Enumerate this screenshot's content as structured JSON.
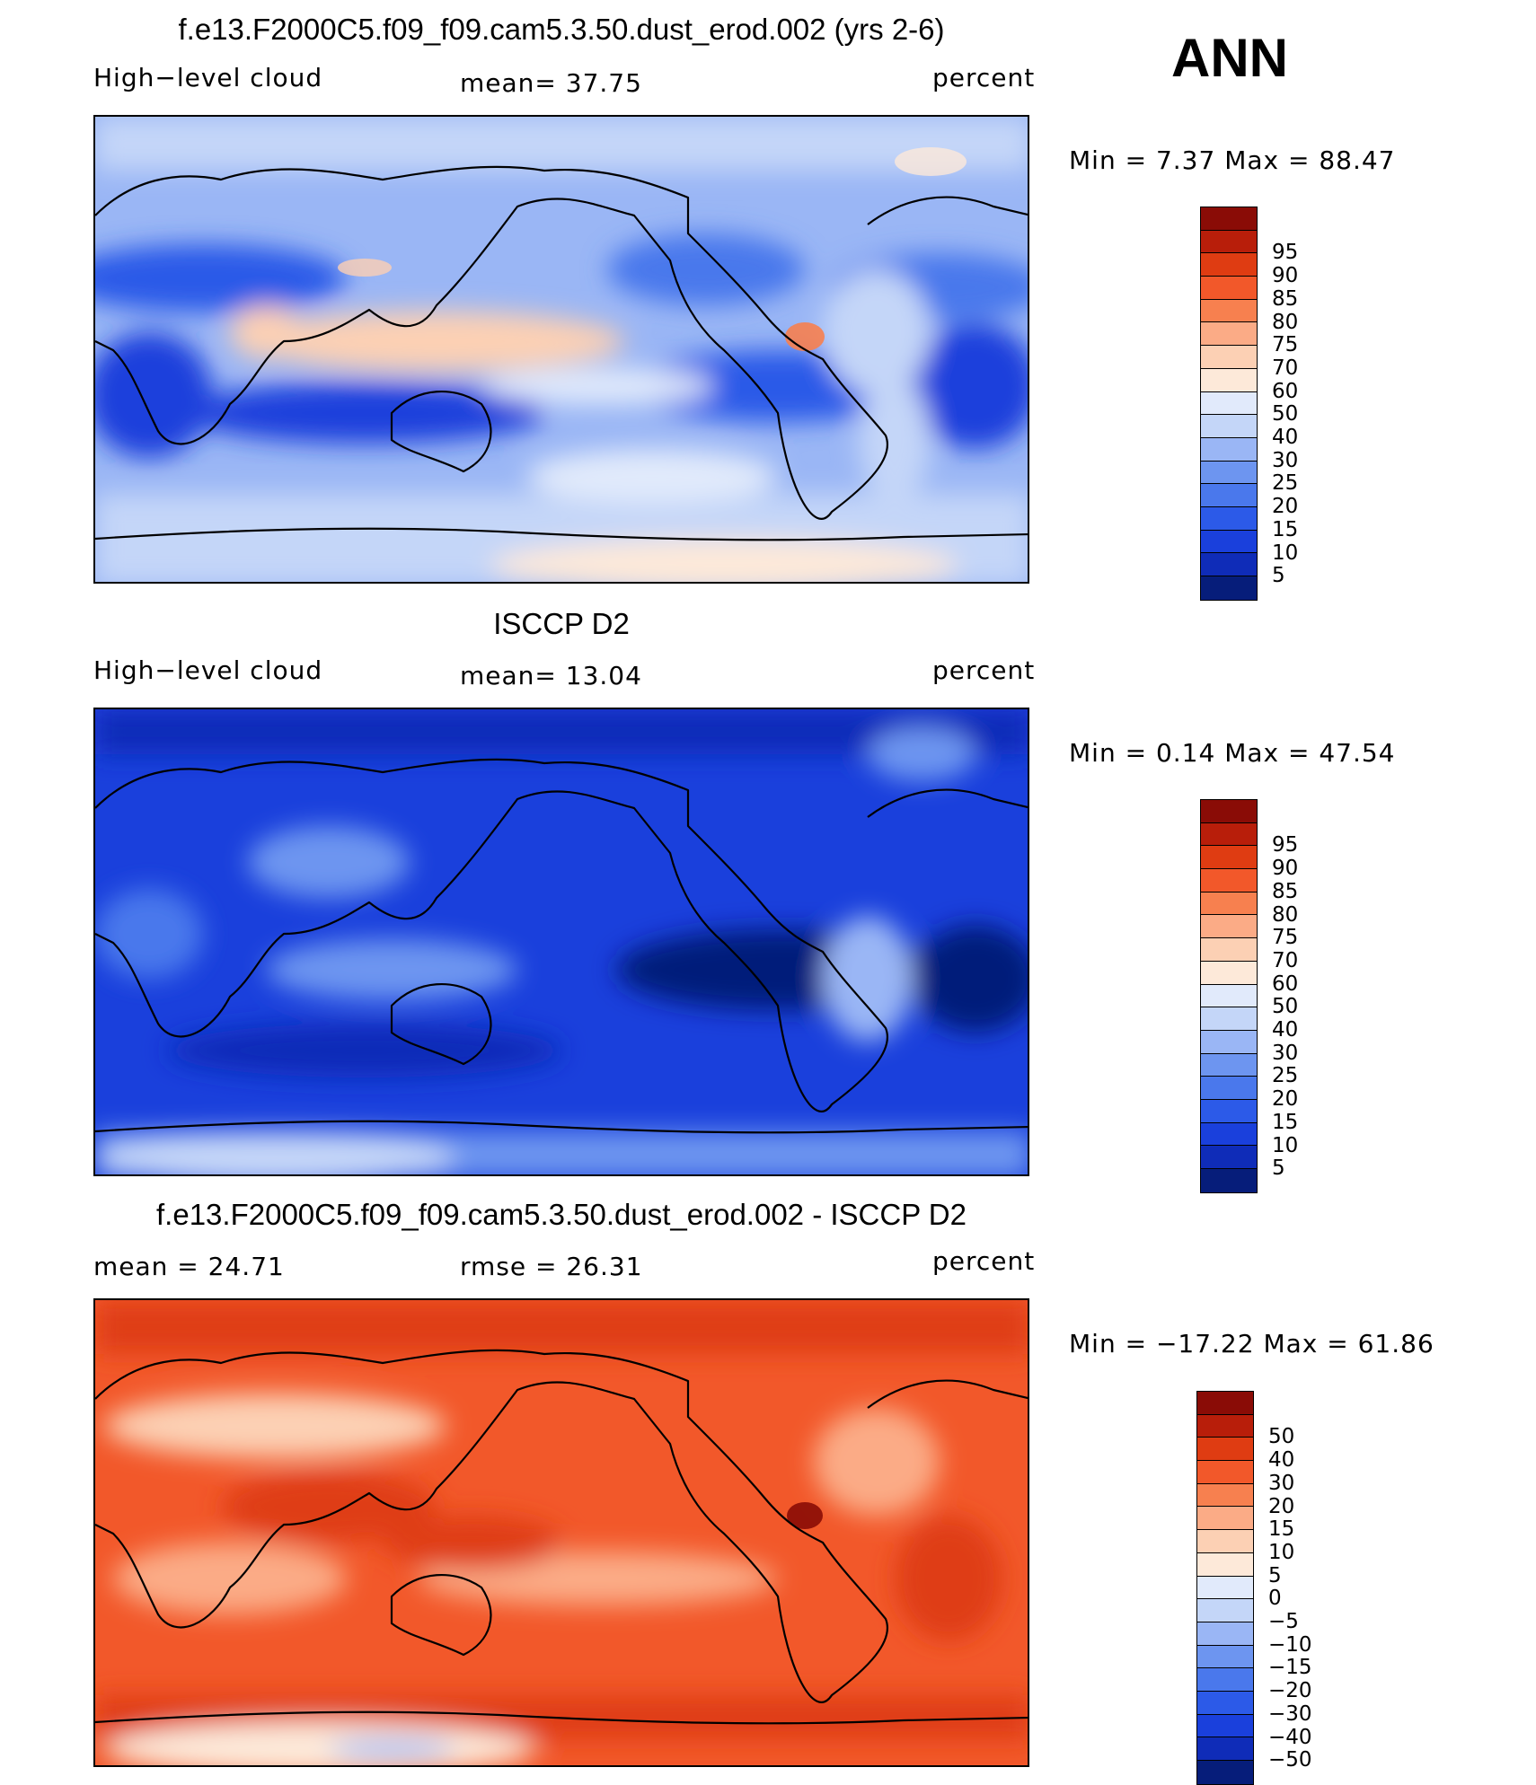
{
  "season": "ANN",
  "palette_std": [
    "#061d7a",
    "#0f2cb8",
    "#1a40dc",
    "#2c5ae8",
    "#4a78ec",
    "#6d95f0",
    "#9ab6f5",
    "#c4d6f8",
    "#e1eafb",
    "#fde9d9",
    "#fcd0b4",
    "#fbab86",
    "#f7804f",
    "#f2582a",
    "#df3c12",
    "#b81e0a",
    "#8a0c06"
  ],
  "colorbars": {
    "std": {
      "labels": [
        "95",
        "90",
        "85",
        "80",
        "75",
        "70",
        "60",
        "50",
        "40",
        "30",
        "25",
        "20",
        "15",
        "10",
        "5"
      ]
    },
    "diff": {
      "labels": [
        "50",
        "40",
        "30",
        "20",
        "15",
        "10",
        "5",
        "0",
        "−5",
        "−10",
        "−15",
        "−20",
        "−30",
        "−40",
        "−50"
      ]
    }
  },
  "panels": [
    {
      "id": "test",
      "title": "f.e13.F2000C5.f09_f09.cam5.3.50.dust_erod.002 (yrs 2-6)",
      "left_label": "High−level cloud",
      "center_label": "mean=  37.75",
      "units": "percent",
      "minmax": "Min =    7.37  Max =   88.47",
      "colorbar": "std"
    },
    {
      "id": "obs",
      "title": "ISCCP D2",
      "left_label": "High−level cloud",
      "center_label": "mean=  13.04",
      "units": "percent",
      "minmax": "Min =    0.14  Max =   47.54",
      "colorbar": "std"
    },
    {
      "id": "diff",
      "title": "f.e13.F2000C5.f09_f09.cam5.3.50.dust_erod.002 - ISCCP D2",
      "left_label": "mean =   24.71",
      "center_label": "rmse =   26.31",
      "units": "percent",
      "minmax": "Min = −17.22  Max =   61.86",
      "colorbar": "diff"
    }
  ]
}
